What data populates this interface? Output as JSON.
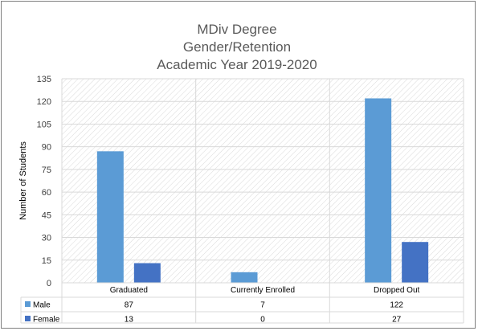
{
  "chart_data": {
    "type": "bar",
    "title_lines": [
      "MDiv Degree",
      "Gender/Retention",
      "Academic Year 2019-2020"
    ],
    "ylabel": "Number of Students",
    "xlabel": "",
    "ylim": [
      0,
      135
    ],
    "yticks": [
      0,
      15,
      30,
      45,
      60,
      75,
      90,
      105,
      120,
      135
    ],
    "grid": true,
    "legend": "data table below chart",
    "categories": [
      "Graduated",
      "Currently Enrolled",
      "Dropped Out"
    ],
    "series": [
      {
        "name": "Male",
        "values": [
          87,
          7,
          122
        ],
        "color": "#5B9BD5"
      },
      {
        "name": "Female",
        "values": [
          13,
          0,
          27
        ],
        "color": "#4472C4"
      }
    ]
  }
}
